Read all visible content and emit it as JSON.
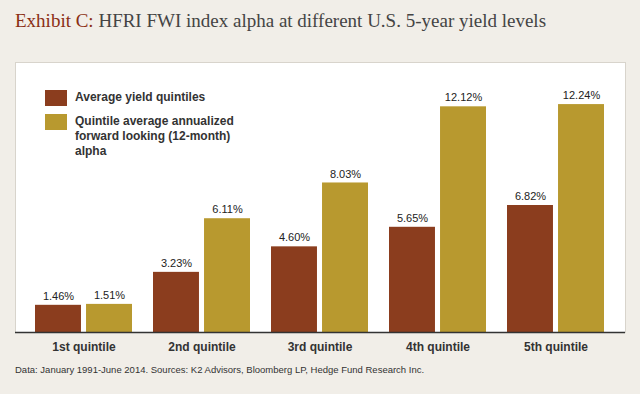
{
  "chart_data": {
    "type": "bar",
    "title": "Exhibit C: HFRI FWI index alpha at different U.S. 5-year yield levels",
    "caption": "Data: January 1991-June 2014. Sources: K2 Advisors, Bloomberg LP, Hedge Fund Research Inc.",
    "categories": [
      "1st quintile",
      "2nd quintile",
      "3rd quintile",
      "4th quintile",
      "5th quintile"
    ],
    "series": [
      {
        "name": "Average yield quintiles",
        "color": "#8b3d1e",
        "values": [
          1.46,
          3.23,
          4.6,
          5.65,
          6.82
        ],
        "value_labels": [
          "1.46%",
          "3.23%",
          "4.60%",
          "5.65%",
          "6.82%"
        ]
      },
      {
        "name": "Quintile average annualized forward looking (12-month) alpha",
        "color": "#b8992f",
        "values": [
          1.51,
          6.11,
          8.03,
          12.12,
          12.24
        ],
        "value_labels": [
          "1.51%",
          "6.11%",
          "8.03%",
          "12.12%",
          "12.24%"
        ]
      }
    ],
    "ylim": [
      0,
      14.5
    ],
    "yticks": [],
    "grid": false,
    "legend": "top-left",
    "data_labels": true,
    "tick_labels": "x"
  }
}
